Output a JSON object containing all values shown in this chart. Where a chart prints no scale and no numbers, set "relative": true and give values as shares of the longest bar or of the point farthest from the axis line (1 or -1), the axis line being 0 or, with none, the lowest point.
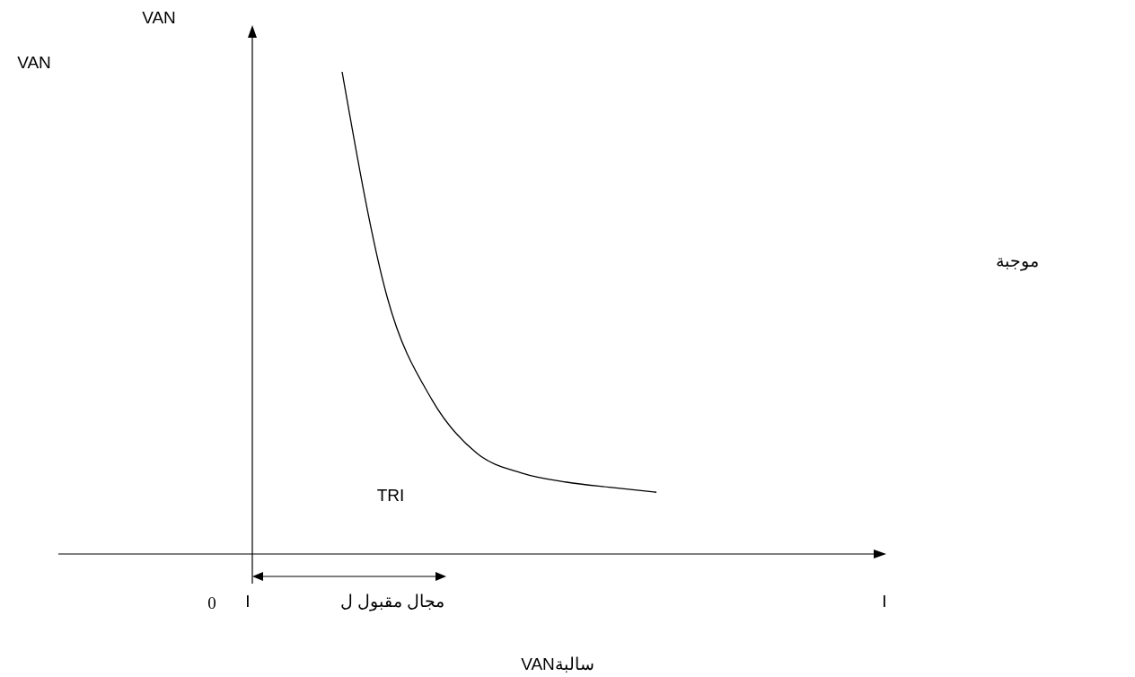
{
  "chart_data": {
    "type": "line",
    "relative": true,
    "ylabel": "VAN",
    "xlabel": "I",
    "categories": [
      null,
      null,
      null,
      null,
      null,
      null,
      null,
      null,
      null,
      null,
      null,
      null,
      null,
      null,
      null
    ],
    "series": [
      {
        "color": "#000000",
        "values": [
          null,
          null,
          1.0,
          0.534,
          0.32,
          0.209,
          0.168,
          0.149,
          0.138,
          0.128,
          null,
          null,
          null,
          null,
          null
        ]
      }
    ],
    "annotations": [
      "VAN",
      "موجبة",
      "VANسالبة",
      "TRI",
      "مجال مقبول ل",
      "0",
      "I"
    ]
  }
}
